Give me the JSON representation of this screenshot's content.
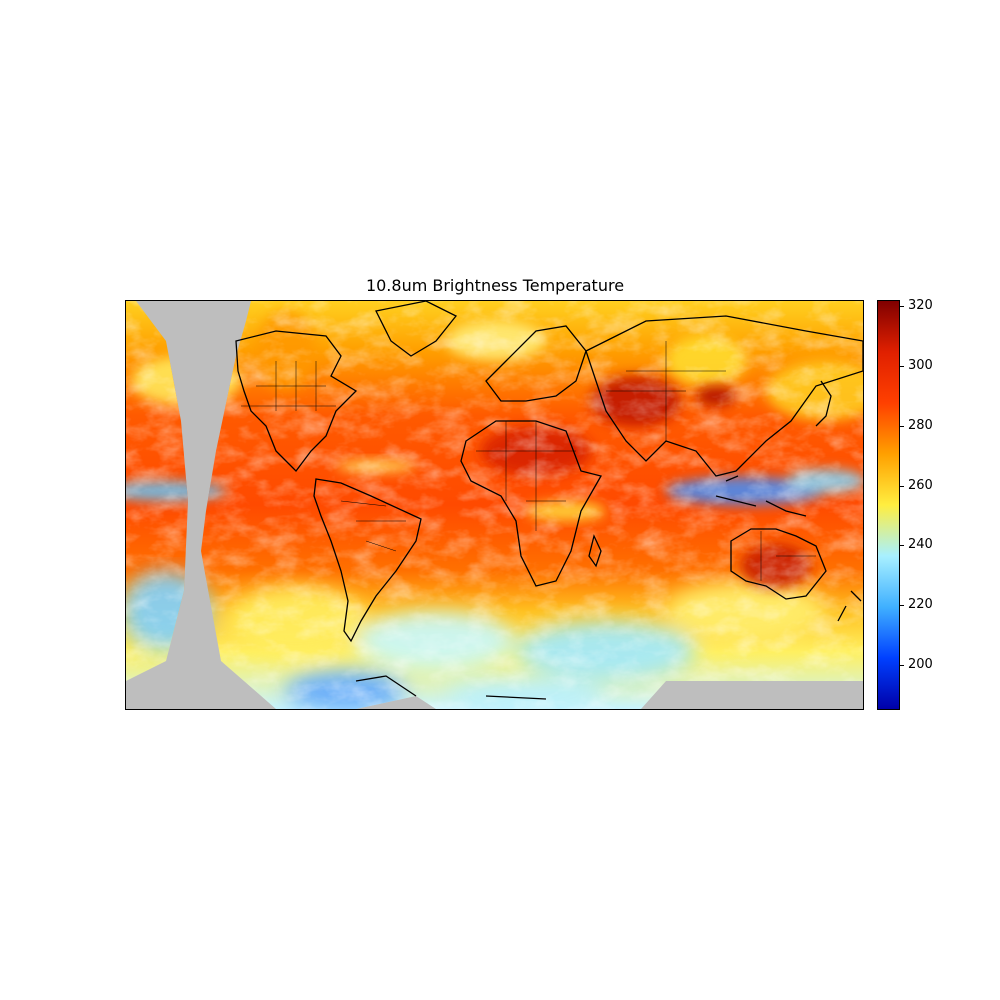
{
  "title": "10.8um Brightness Temperature",
  "colorbar": {
    "min": 185,
    "max": 322,
    "ticks": [
      200,
      220,
      240,
      260,
      280,
      300,
      320
    ],
    "tick_labels": [
      "200",
      "220",
      "240",
      "260",
      "280",
      "300",
      "320"
    ],
    "colormap": "jet",
    "colors": [
      "#0000a8",
      "#0040ff",
      "#40b0ff",
      "#a8f0ff",
      "#ffee40",
      "#ffa000",
      "#ff4000",
      "#e02000",
      "#800000"
    ]
  },
  "map": {
    "projection": "plate-carree",
    "extent_lon": [
      -180,
      180
    ],
    "extent_lat": [
      -90,
      90
    ],
    "missing_data_color": "#bebebe",
    "coastline_color": "#000000"
  }
}
